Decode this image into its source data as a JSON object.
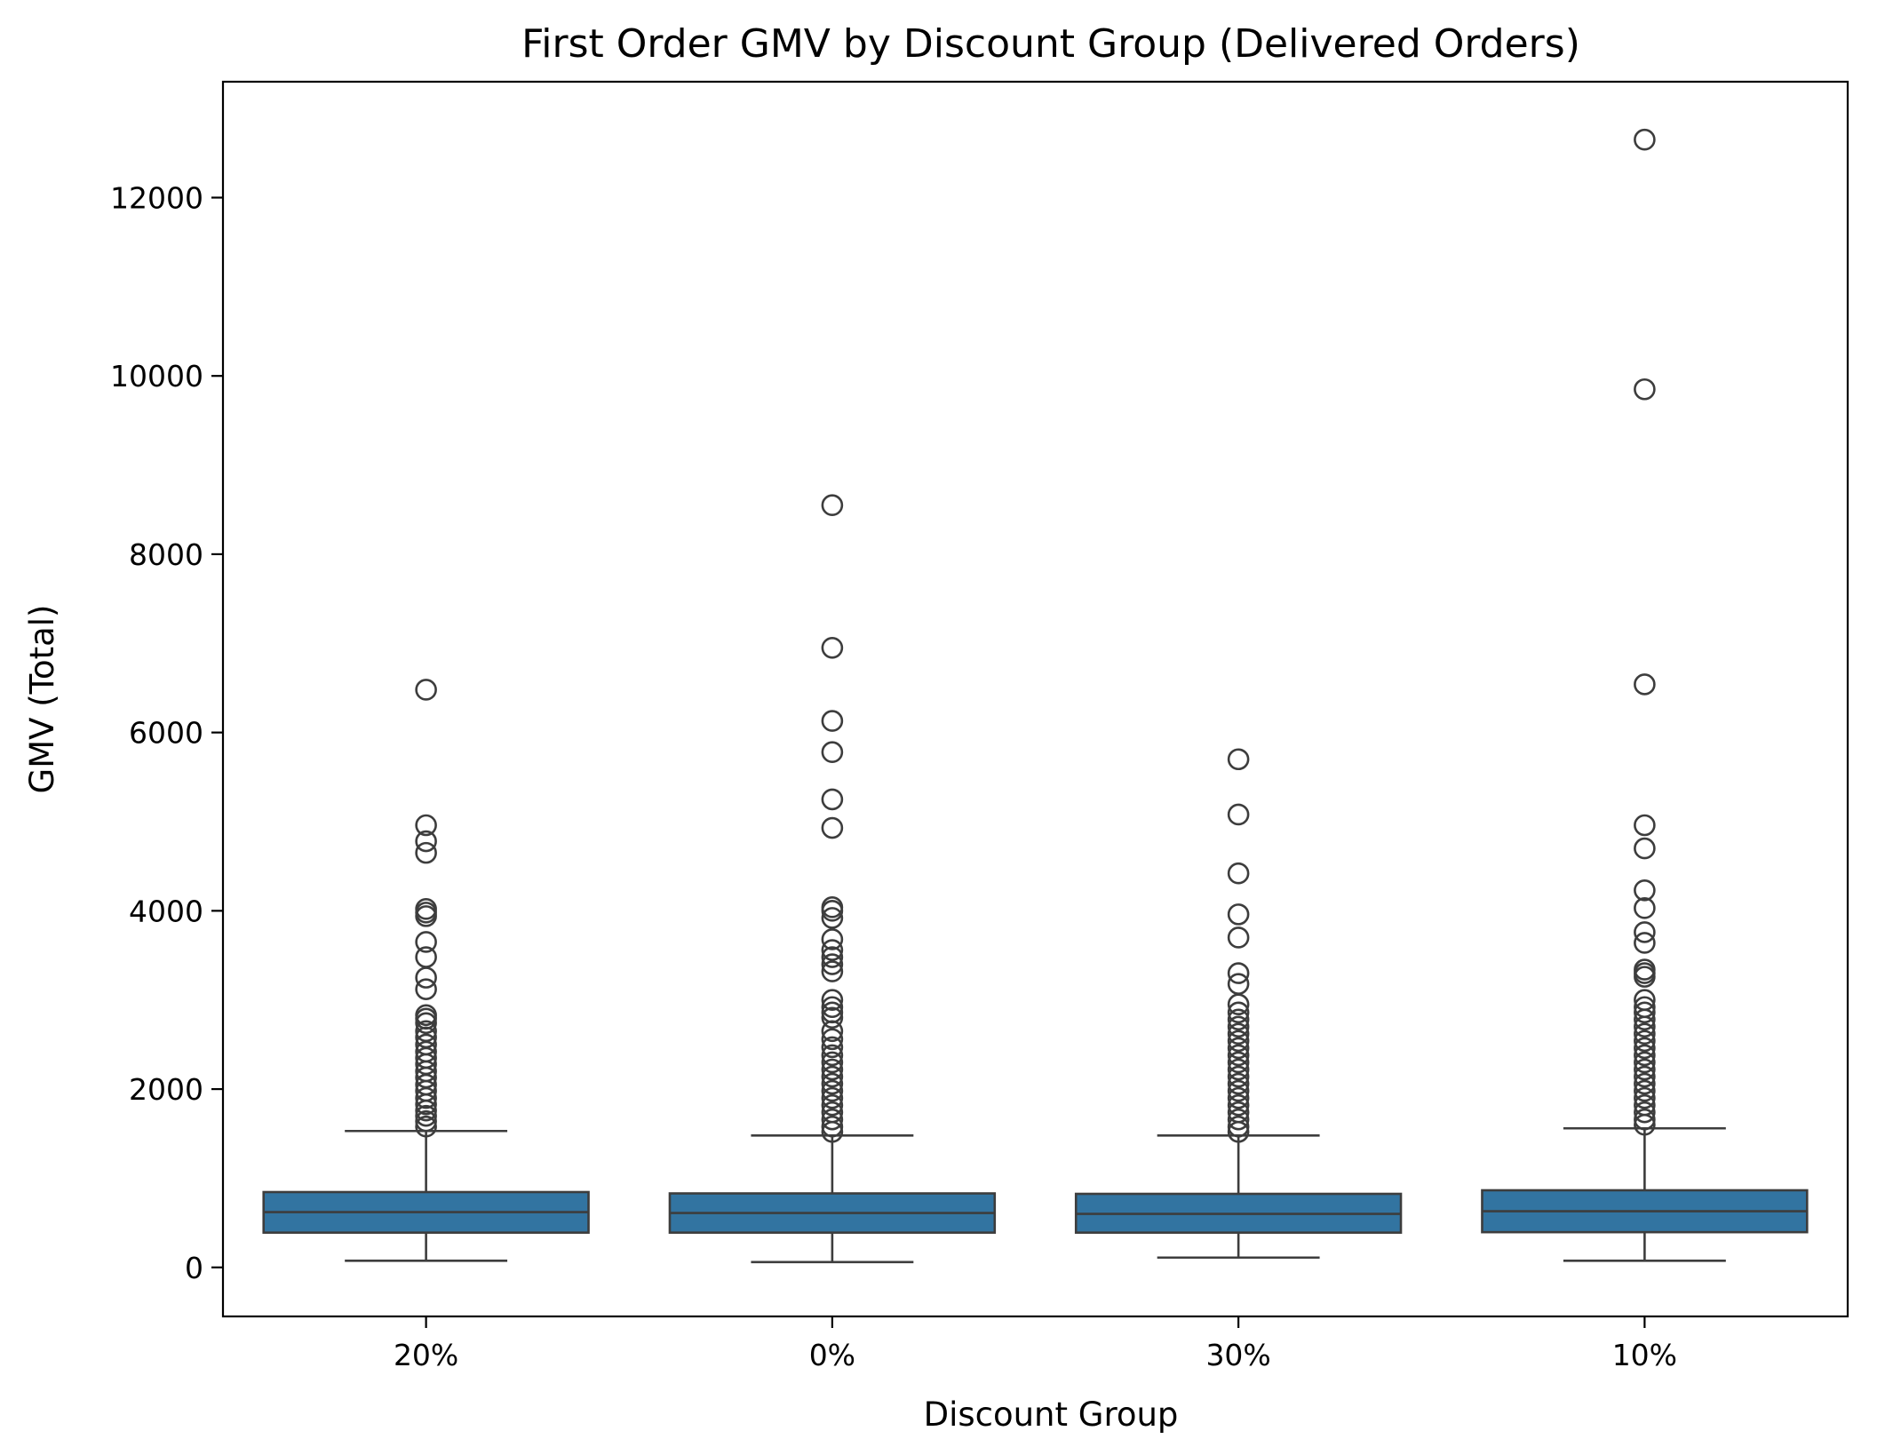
{
  "chart_data": {
    "type": "box",
    "title": "First Order GMV by Discount Group (Delivered Orders)",
    "xlabel": "Discount Group",
    "ylabel": "GMV (Total)",
    "categories": [
      "20%",
      "0%",
      "30%",
      "10%"
    ],
    "ylim": [
      -550,
      13300
    ],
    "yticks": [
      0,
      2000,
      4000,
      6000,
      8000,
      10000,
      12000
    ],
    "grid": false,
    "legend": "none",
    "box_color": "#3274a1",
    "line_color": "#3d3d3d",
    "boxes": [
      {
        "category": "20%",
        "whisker_low": 75,
        "q1": 390,
        "median": 620,
        "q3": 845,
        "whisker_high": 1530,
        "outliers": [
          6480,
          4960,
          4780,
          4650,
          4020,
          3980,
          3940,
          3650,
          3480,
          3250,
          3120,
          2830,
          2790,
          2740,
          2650,
          2580,
          2500,
          2420,
          2350,
          2280,
          2200,
          2130,
          2050,
          1980,
          1900,
          1830,
          1760,
          1700,
          1640,
          1580
        ]
      },
      {
        "category": "0%",
        "whisker_low": 60,
        "q1": 390,
        "median": 610,
        "q3": 830,
        "whisker_high": 1480,
        "outliers": [
          8550,
          6950,
          6130,
          5780,
          5250,
          4930,
          4040,
          4000,
          3920,
          3680,
          3560,
          3480,
          3400,
          3320,
          3000,
          2920,
          2860,
          2800,
          2650,
          2560,
          2470,
          2380,
          2300,
          2220,
          2140,
          2060,
          1980,
          1900,
          1820,
          1740,
          1660,
          1580,
          1520
        ]
      },
      {
        "category": "30%",
        "whisker_low": 110,
        "q1": 390,
        "median": 600,
        "q3": 825,
        "whisker_high": 1480,
        "outliers": [
          5700,
          5080,
          4420,
          3960,
          3700,
          3300,
          3180,
          2950,
          2860,
          2780,
          2700,
          2620,
          2540,
          2460,
          2380,
          2300,
          2220,
          2140,
          2060,
          1980,
          1900,
          1820,
          1740,
          1660,
          1580,
          1520
        ]
      },
      {
        "category": "10%",
        "whisker_low": 75,
        "q1": 395,
        "median": 630,
        "q3": 865,
        "whisker_high": 1560,
        "outliers": [
          12650,
          9850,
          6540,
          4960,
          4700,
          4230,
          4030,
          3760,
          3640,
          3340,
          3300,
          3260,
          3000,
          2920,
          2860,
          2780,
          2700,
          2620,
          2540,
          2460,
          2380,
          2300,
          2220,
          2140,
          2060,
          1980,
          1900,
          1820,
          1740,
          1660,
          1600
        ]
      }
    ]
  }
}
